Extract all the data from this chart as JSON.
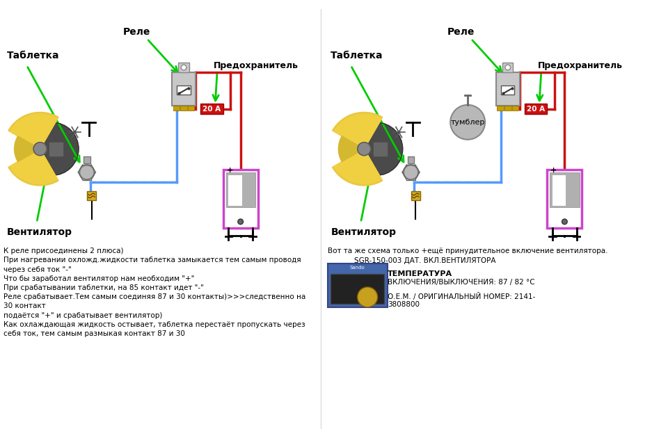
{
  "bg_color": "#ffffff",
  "left_diagram": {
    "tablетка_label": "Таблетка",
    "rele_label": "Реле",
    "predoxr_label": "Предохранитель",
    "vent_label": "Вентилятор",
    "fuse_text": "20 А"
  },
  "right_diagram": {
    "tablетка_label": "Таблетка",
    "rele_label": "Реле",
    "predoxr_label": "Предохранитель",
    "vent_label": "Вентилятор",
    "tumbler_label": "тумблер",
    "fuse_text": "20 А"
  },
  "bottom_left_text": "К реле присоединены 2 плюса)\nПри нагревании охложд.жидкости таблетка замыкается тем самым проводя\nчерез себя ток \"-\"\nЧто бы заработал вентилятор нам необходим \"+\"\nПри срабатывании таблетки, на 85 контакт идет \"-\"\nРеле срабатывает.Тем самым соединяя 87 и 30 контакты)>>>следственно на\n30 контакт\nподаётся \"+\" и срабатывает вентилятор)\nКак охлаждающая жидкость остывает, таблетка перестаёт пропускать через\nсебя ток, тем самым размыкая контакт 87 и 30",
  "bottom_right_line1": "Вот та же схема только +ещё принудительное включение вентилятора.",
  "bottom_right_line2": "SGR-150-003 ДАТ. ВКЛ.ВЕНТИЛЯТОРА",
  "bottom_right_line3": "ТЕМПЕРАТУРА",
  "bottom_right_line4": "ВКЛЮЧЕНИЯ/ВЫКЛЮЧЕНИЯ: 87 / 82 °C",
  "bottom_right_line5": "О.Е.М. / ОРИГИНАЛЬНЫЙ НОМЕР: 2141-",
  "bottom_right_line6": "3808800"
}
